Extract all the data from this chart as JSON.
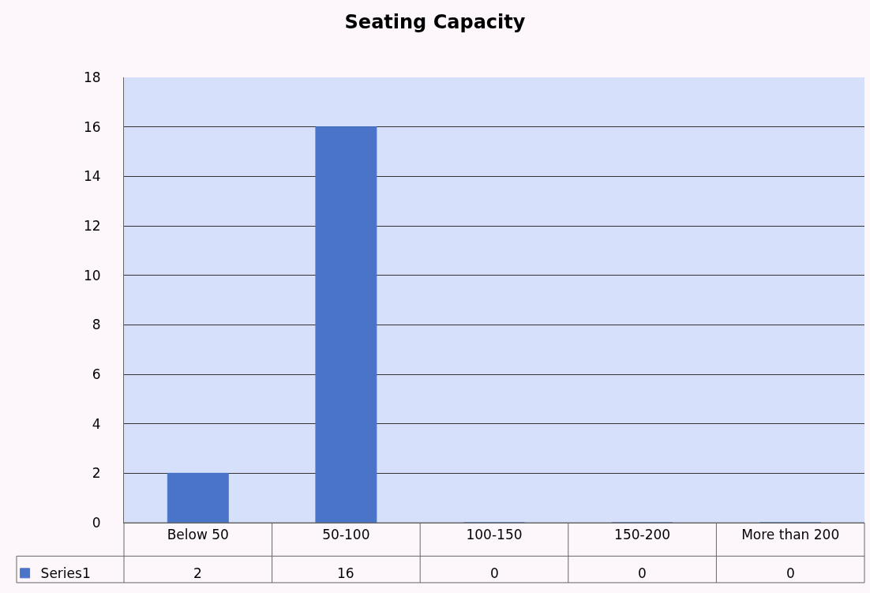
{
  "chart_data": {
    "type": "bar",
    "title": "Seating Capacity",
    "categories": [
      "Below 50",
      "50-100",
      "100-150",
      "150-200",
      "More than 200"
    ],
    "series": [
      {
        "name": "Series1",
        "color": "#4a74c8",
        "values": [
          2,
          16,
          0,
          0,
          0
        ]
      }
    ],
    "ylim": [
      0,
      18
    ],
    "yticks": [
      0,
      2,
      4,
      6,
      8,
      10,
      12,
      14,
      16,
      18
    ],
    "grid": "y",
    "legend": "bottom",
    "data_labels": true
  }
}
